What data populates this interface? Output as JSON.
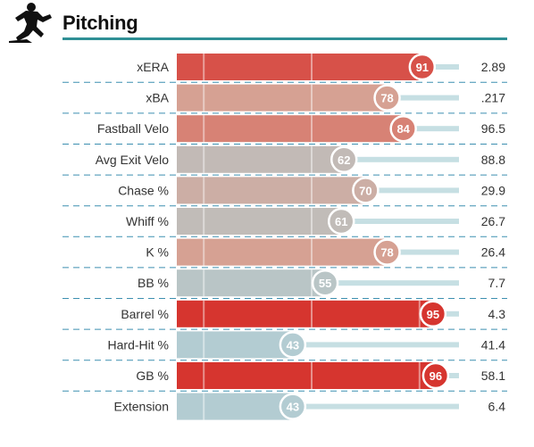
{
  "section": {
    "title": "Pitching"
  },
  "colors": {
    "rule": "#2f8f95",
    "divider": "#3c8fb0",
    "track": "#c6dfe3",
    "scale": [
      "#b3ccd2",
      "#c2bab6",
      "#d89e8f",
      "#d6352f"
    ]
  },
  "chart_data": {
    "type": "bar",
    "orientation": "horizontal",
    "xlim": [
      0,
      100
    ],
    "categories": [
      "xERA",
      "xBA",
      "Fastball Velo",
      "Avg Exit Velo",
      "Chase %",
      "Whiff %",
      "K %",
      "BB %",
      "Barrel %",
      "Hard-Hit %",
      "GB %",
      "Extension"
    ],
    "percentiles": [
      91,
      78,
      84,
      62,
      70,
      61,
      78,
      55,
      95,
      43,
      96,
      43
    ],
    "values": [
      "2.89",
      ".217",
      "96.5",
      "88.8",
      "29.9",
      "26.7",
      "26.4",
      "7.7",
      "4.3",
      "41.4",
      "58.1",
      "6.4"
    ],
    "reference_lines": [
      10,
      50,
      90
    ]
  }
}
